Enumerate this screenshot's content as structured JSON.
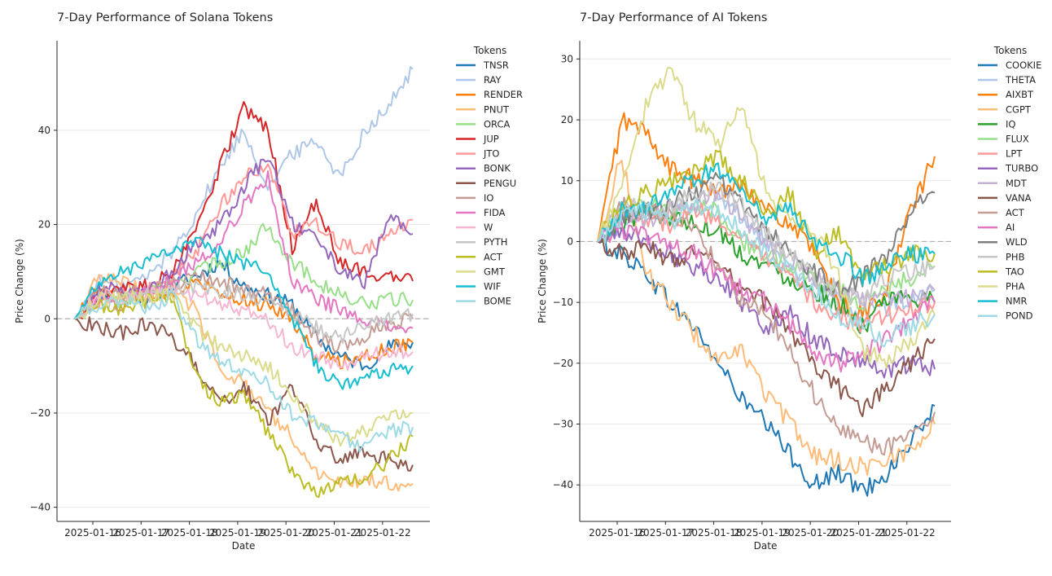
{
  "chart_data": [
    {
      "type": "line",
      "title": "7-Day Performance of Solana Tokens",
      "xlabel": "Date",
      "ylabel": "Price Change (%)",
      "x_ticks": [
        "2025-01-16",
        "2025-01-17",
        "2025-01-18",
        "2025-01-19",
        "2025-01-20",
        "2025-01-21",
        "2025-01-22"
      ],
      "x_range": [
        0,
        7.2
      ],
      "ylim": [
        -43,
        59
      ],
      "y_ticks": [
        -40,
        -20,
        0,
        20,
        40
      ],
      "y_tick_labels": [
        "−40",
        "−20",
        "0",
        "20",
        "40"
      ],
      "legend_title": "Tokens",
      "legend_position": "upper-right-outside",
      "zero_line": true,
      "series": [
        {
          "name": "TNSR",
          "color": "#1f77b4",
          "values": [
            0,
            5,
            6,
            4,
            7,
            9,
            12,
            7,
            5,
            3,
            -4,
            -8,
            -10,
            -6,
            -5
          ]
        },
        {
          "name": "RAY",
          "color": "#aec7e8",
          "values": [
            0,
            8,
            7,
            9,
            14,
            22,
            32,
            40,
            28,
            35,
            38,
            30,
            40,
            45,
            53
          ]
        },
        {
          "name": "RENDER",
          "color": "#ff7f0e",
          "values": [
            0,
            6,
            4,
            5,
            6,
            8,
            6,
            4,
            3,
            0,
            -8,
            -9,
            -8,
            -6,
            -5
          ]
        },
        {
          "name": "PNUT",
          "color": "#ffbb78",
          "values": [
            0,
            9,
            8,
            5,
            6,
            2,
            -10,
            -14,
            -20,
            -25,
            -33,
            -35,
            -34,
            -35,
            -35
          ]
        },
        {
          "name": "ORCA",
          "color": "#98df8a",
          "values": [
            0,
            5,
            4,
            6,
            7,
            10,
            12,
            14,
            20,
            12,
            8,
            5,
            3,
            4,
            4
          ]
        },
        {
          "name": "JUP",
          "color": "#d62728",
          "values": [
            0,
            5,
            6,
            7,
            10,
            18,
            32,
            45,
            40,
            15,
            25,
            12,
            10,
            9,
            8
          ]
        },
        {
          "name": "JTO",
          "color": "#ff9896",
          "values": [
            0,
            4,
            5,
            6,
            8,
            14,
            24,
            30,
            32,
            18,
            20,
            16,
            14,
            18,
            21
          ]
        },
        {
          "name": "BONK",
          "color": "#9467bd",
          "values": [
            0,
            6,
            7,
            5,
            10,
            16,
            20,
            28,
            35,
            20,
            18,
            10,
            8,
            22,
            18
          ]
        },
        {
          "name": "PENGU",
          "color": "#8c564b",
          "values": [
            0,
            -2,
            -3,
            -1,
            -4,
            -10,
            -18,
            -14,
            -22,
            -14,
            -26,
            -30,
            -28,
            -30,
            -31
          ]
        },
        {
          "name": "IO",
          "color": "#c49c94",
          "values": [
            0,
            6,
            5,
            6,
            7,
            9,
            8,
            6,
            5,
            2,
            -4,
            -6,
            -4,
            -1,
            0
          ]
        },
        {
          "name": "FIDA",
          "color": "#e377c2",
          "values": [
            0,
            4,
            3,
            6,
            8,
            12,
            16,
            24,
            30,
            8,
            4,
            2,
            0,
            -2,
            -2
          ]
        },
        {
          "name": "W",
          "color": "#f7b6d2",
          "values": [
            0,
            5,
            4,
            5,
            6,
            5,
            3,
            2,
            0,
            -6,
            -8,
            -10,
            -8,
            -7,
            -7
          ]
        },
        {
          "name": "PYTH",
          "color": "#c7c7c7",
          "values": [
            0,
            3,
            4,
            5,
            6,
            7,
            6,
            5,
            4,
            1,
            -2,
            -4,
            -2,
            0,
            1
          ]
        },
        {
          "name": "ACT",
          "color": "#bcbd22",
          "values": [
            0,
            3,
            2,
            4,
            5,
            -12,
            -18,
            -16,
            -24,
            -32,
            -37,
            -35,
            -34,
            -30,
            -25
          ]
        },
        {
          "name": "GMT",
          "color": "#dbdb8d",
          "values": [
            0,
            4,
            5,
            4,
            6,
            -2,
            -6,
            -8,
            -10,
            -16,
            -22,
            -26,
            -24,
            -21,
            -20
          ]
        },
        {
          "name": "WIF",
          "color": "#17becf",
          "values": [
            0,
            8,
            10,
            12,
            14,
            16,
            14,
            12,
            10,
            0,
            -10,
            -14,
            -13,
            -11,
            -10
          ]
        },
        {
          "name": "BOME",
          "color": "#9edae5",
          "values": [
            0,
            3,
            4,
            2,
            5,
            -4,
            -9,
            -11,
            -14,
            -20,
            -22,
            -25,
            -27,
            -24,
            -23
          ]
        }
      ]
    },
    {
      "type": "line",
      "title": "7-Day Performance of AI Tokens",
      "xlabel": "Date",
      "ylabel": "Price Change (%)",
      "x_ticks": [
        "2025-01-16",
        "2025-01-17",
        "2025-01-18",
        "2025-01-19",
        "2025-01-20",
        "2025-01-21",
        "2025-01-22"
      ],
      "x_range": [
        0,
        7.2
      ],
      "ylim": [
        -46,
        33
      ],
      "y_ticks": [
        -40,
        -30,
        -20,
        -10,
        0,
        10,
        20,
        30
      ],
      "y_tick_labels": [
        "−40",
        "−30",
        "−20",
        "−10",
        "0",
        "10",
        "20",
        "30"
      ],
      "legend_title": "Tokens",
      "legend_position": "upper-right-outside",
      "zero_line": true,
      "series": [
        {
          "name": "COOKIE",
          "color": "#1f77b4",
          "values": [
            0,
            -2,
            -5,
            -10,
            -14,
            -20,
            -26,
            -30,
            -35,
            -40,
            -38,
            -41,
            -38,
            -33,
            -27
          ]
        },
        {
          "name": "THETA",
          "color": "#aec7e8",
          "values": [
            0,
            3,
            5,
            4,
            6,
            7,
            4,
            0,
            -4,
            -8,
            -10,
            -12,
            -11,
            -9,
            -8
          ]
        },
        {
          "name": "AIXBT",
          "color": "#ff7f0e",
          "values": [
            0,
            20,
            18,
            12,
            10,
            8,
            10,
            5,
            3,
            -2,
            -10,
            -12,
            -8,
            5,
            14
          ]
        },
        {
          "name": "CGPT",
          "color": "#ffbb78",
          "values": [
            0,
            14,
            -5,
            -10,
            -15,
            -20,
            -18,
            -25,
            -30,
            -35,
            -36,
            -37,
            -36,
            -34,
            -30
          ]
        },
        {
          "name": "IQ",
          "color": "#2ca02c",
          "values": [
            0,
            3,
            5,
            4,
            3,
            2,
            -2,
            -4,
            -6,
            -8,
            -10,
            -14,
            -10,
            -9,
            -10
          ]
        },
        {
          "name": "FLUX",
          "color": "#98df8a",
          "values": [
            0,
            4,
            6,
            5,
            6,
            5,
            0,
            -2,
            -4,
            -6,
            -8,
            -10,
            -8,
            -6,
            -4
          ]
        },
        {
          "name": "LPT",
          "color": "#ff9896",
          "values": [
            0,
            5,
            4,
            3,
            5,
            4,
            0,
            -3,
            -6,
            -10,
            -12,
            -14,
            -12,
            -11,
            -10
          ]
        },
        {
          "name": "TURBO",
          "color": "#9467bd",
          "values": [
            0,
            2,
            0,
            -2,
            -4,
            -6,
            -10,
            -14,
            -12,
            -16,
            -18,
            -20,
            -21,
            -20,
            -21
          ]
        },
        {
          "name": "MDT",
          "color": "#c5b0d5",
          "values": [
            0,
            4,
            3,
            5,
            6,
            8,
            4,
            0,
            -3,
            -6,
            -8,
            -10,
            -9,
            -9,
            -8
          ]
        },
        {
          "name": "VANA",
          "color": "#8c564b",
          "values": [
            0,
            -2,
            -1,
            -3,
            -2,
            -4,
            -8,
            -10,
            -15,
            -20,
            -24,
            -28,
            -24,
            -20,
            -16
          ]
        },
        {
          "name": "ACT",
          "color": "#c49c94",
          "values": [
            0,
            6,
            5,
            4,
            2,
            -4,
            -10,
            -12,
            -18,
            -25,
            -30,
            -33,
            -34,
            -32,
            -28
          ]
        },
        {
          "name": "AI",
          "color": "#e377c2",
          "values": [
            0,
            2,
            1,
            -1,
            -2,
            -5,
            -8,
            -10,
            -14,
            -18,
            -20,
            -19,
            -16,
            -13,
            -10
          ]
        },
        {
          "name": "WLD",
          "color": "#7f7f7f",
          "values": [
            0,
            4,
            5,
            6,
            8,
            10,
            6,
            2,
            -2,
            -5,
            -8,
            -6,
            -2,
            5,
            8
          ]
        },
        {
          "name": "PHB",
          "color": "#c7c7c7",
          "values": [
            0,
            6,
            5,
            6,
            8,
            9,
            6,
            1,
            -2,
            -6,
            -8,
            -10,
            -6,
            -5,
            -4
          ]
        },
        {
          "name": "TAO",
          "color": "#bcbd22",
          "values": [
            0,
            6,
            8,
            10,
            12,
            14,
            10,
            4,
            8,
            -2,
            2,
            -6,
            -4,
            -2,
            -2
          ]
        },
        {
          "name": "PHA",
          "color": "#dbdb8d",
          "values": [
            0,
            10,
            22,
            28,
            20,
            16,
            22,
            8,
            4,
            2,
            -6,
            -18,
            -20,
            -16,
            -12
          ]
        },
        {
          "name": "NMR",
          "color": "#17becf",
          "values": [
            0,
            5,
            6,
            8,
            10,
            12,
            8,
            4,
            6,
            0,
            -2,
            -6,
            -4,
            -2,
            -2
          ]
        },
        {
          "name": "POND",
          "color": "#9edae5",
          "values": [
            0,
            4,
            5,
            3,
            6,
            5,
            2,
            -2,
            -5,
            -8,
            -12,
            -14,
            -16,
            -14,
            -12
          ]
        }
      ]
    }
  ]
}
